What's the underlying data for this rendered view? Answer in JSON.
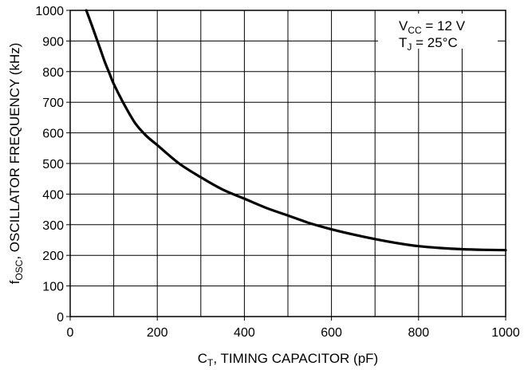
{
  "chart_data": {
    "type": "line",
    "title": "",
    "xlabel": {
      "main": "C",
      "sub": "T",
      "rest": ", TIMING CAPACITOR (pF)"
    },
    "ylabel": {
      "main": "f",
      "sub": "OSC",
      "rest": ", OSCILLATOR FREQUENCY (kHz)"
    },
    "xlim": [
      0,
      1000
    ],
    "ylim": [
      0,
      1000
    ],
    "x_ticks": [
      0,
      200,
      400,
      600,
      800,
      1000
    ],
    "y_ticks": [
      0,
      100,
      200,
      300,
      400,
      500,
      600,
      700,
      800,
      900,
      1000
    ],
    "x_grid_step": 100,
    "y_grid_step": 100,
    "grid": true,
    "legend": {
      "placement": "top-right",
      "line1": {
        "main": "V",
        "sub": "CC",
        "rest": " = 12 V"
      },
      "line2": {
        "main": "T",
        "sub": "J",
        "rest": " = 25°C"
      }
    },
    "series": [
      {
        "x": [
          37,
          50,
          60,
          70,
          80,
          90,
          100,
          125,
          150,
          175,
          200,
          250,
          300,
          350,
          400,
          450,
          500,
          550,
          600,
          650,
          700,
          750,
          800,
          850,
          900,
          950,
          1000
        ],
        "y": [
          1000,
          950,
          910,
          870,
          830,
          795,
          760,
          690,
          630,
          590,
          560,
          500,
          455,
          415,
          385,
          355,
          330,
          305,
          285,
          268,
          253,
          240,
          230,
          224,
          220,
          218,
          217
        ]
      }
    ]
  }
}
